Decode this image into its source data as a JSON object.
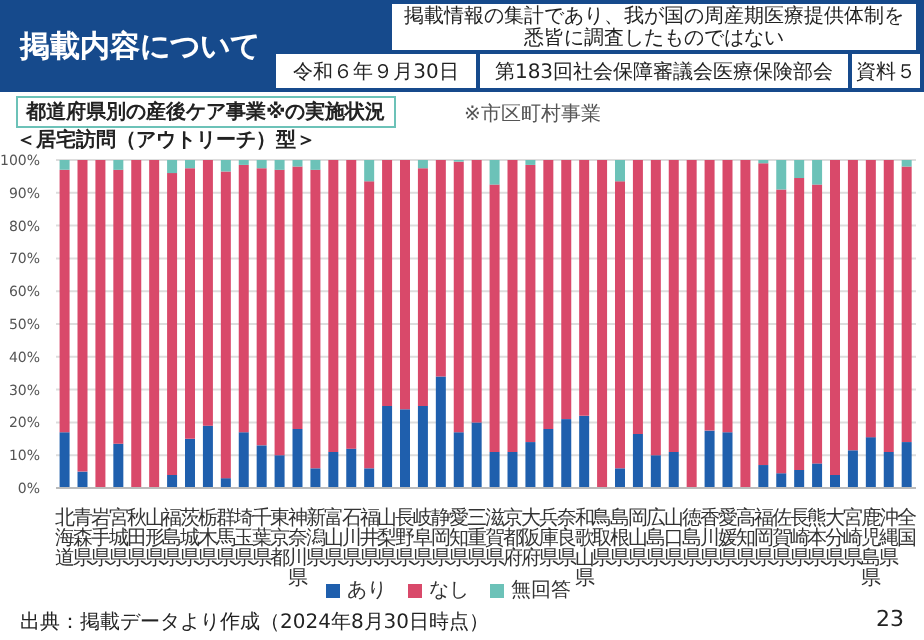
{
  "chart_data": {
    "type": "bar",
    "stacked": true,
    "title": "都道府県別の産後ケア事業※の実施状況",
    "subtitle": "＜居宅訪問（アウトリーチ）型＞",
    "annotations": [
      "掲載内容について",
      "掲載情報の集計であり、我が国の周産期医療提供体制を悉皆に調査したものではない",
      "令和６年９月30日",
      "第183回社会保障審議会医療保険部会",
      "資料５",
      "※市区町村事業",
      "出典：掲載データより作成（2024年8月30日時点）",
      "23"
    ],
    "categories": [
      "北海道",
      "青森県",
      "岩手県",
      "宮城県",
      "秋田県",
      "山形県",
      "福島県",
      "茨城県",
      "栃木県",
      "群馬県",
      "埼玉県",
      "千葉県",
      "東京都",
      "神奈川県",
      "新潟県",
      "富山県",
      "石川県",
      "福井県",
      "山梨県",
      "長野県",
      "岐阜県",
      "静岡県",
      "愛知県",
      "三重県",
      "滋賀県",
      "京都府",
      "大阪府",
      "兵庫県",
      "奈良県",
      "和歌山県",
      "鳥取県",
      "島根県",
      "岡山県",
      "広島県",
      "山口県",
      "徳島県",
      "香川県",
      "愛媛県",
      "高知県",
      "福岡県",
      "佐賀県",
      "長崎県",
      "熊本県",
      "大分県",
      "宮崎県",
      "鹿児島県",
      "沖縄県",
      "全国"
    ],
    "series": [
      {
        "name": "あり",
        "color": "#1f5fad",
        "values": [
          17,
          5,
          0,
          13.5,
          0,
          0,
          4,
          15,
          19,
          3,
          17,
          13,
          10,
          18,
          6,
          11,
          12,
          6,
          25,
          24,
          25,
          34,
          17,
          20,
          11,
          11,
          14,
          18,
          21,
          22,
          0,
          6,
          16.5,
          10,
          11,
          0,
          17.5,
          17,
          0,
          7,
          4.5,
          5.5,
          7.5,
          4,
          11.5,
          15.5,
          11,
          14
        ]
      },
      {
        "name": "なし",
        "color": "#d9496a",
        "values": [
          80,
          95,
          100,
          83.5,
          100,
          100,
          92,
          82.5,
          81,
          93.5,
          81.5,
          84.5,
          87,
          80,
          91,
          89,
          88,
          87.5,
          75,
          76,
          72.5,
          66,
          82.5,
          80,
          81.5,
          89,
          84.5,
          82,
          79,
          78,
          100,
          87.5,
          83.5,
          90,
          89,
          100,
          82.5,
          83,
          100,
          92,
          86.5,
          89,
          85,
          96,
          88.5,
          84.5,
          89,
          84
        ]
      },
      {
        "name": "無回答",
        "color": "#6cc2b8",
        "values": [
          3,
          0,
          0,
          3,
          0,
          0,
          4,
          2.5,
          0,
          3.5,
          1.5,
          2.5,
          3,
          2,
          3,
          0,
          0,
          6.5,
          0,
          0,
          2.5,
          0,
          0.5,
          0,
          7.5,
          0,
          1.5,
          0,
          0,
          0,
          0,
          6.5,
          0,
          0,
          0,
          0,
          0,
          0,
          0,
          1,
          9,
          5.5,
          7.5,
          0,
          0,
          0,
          0,
          2
        ]
      }
    ],
    "ylim": [
      0,
      100
    ],
    "yticks": [
      {
        "value": 0,
        "label": "0%"
      },
      {
        "value": 10,
        "label": "10%"
      },
      {
        "value": 20,
        "label": "20%"
      },
      {
        "value": 30,
        "label": "30%"
      },
      {
        "value": 40,
        "label": "40%"
      },
      {
        "value": 50,
        "label": "50%"
      },
      {
        "value": 60,
        "label": "60%"
      },
      {
        "value": 70,
        "label": "70%"
      },
      {
        "value": 80,
        "label": "80%"
      },
      {
        "value": 90,
        "label": "90%"
      },
      {
        "value": 100,
        "label": "100%"
      }
    ],
    "grid": "y",
    "legend": "bottom"
  }
}
